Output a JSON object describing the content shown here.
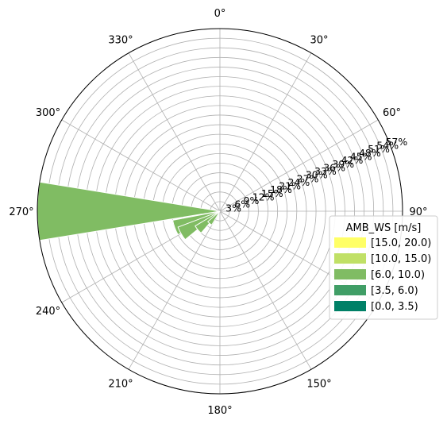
{
  "chart_data": {
    "type": "polar-bar",
    "title": "",
    "theta_direction": "clockwise",
    "theta_zero": "N",
    "theta_ticks": [
      "0°",
      "30°",
      "60°",
      "90°",
      "150°",
      "180°",
      "210°",
      "240°",
      "270°",
      "300°",
      "330°"
    ],
    "r_ticks": [
      "3%",
      "6%",
      "9%",
      "12%",
      "15%",
      "18%",
      "21%",
      "24%",
      "27%",
      "30%",
      "33%",
      "36%",
      "39%",
      "42%",
      "45%",
      "48%",
      "51%",
      "54%",
      "57%"
    ],
    "r_max": 57,
    "grid": true,
    "legend": {
      "title": "AMB_WS [m/s]",
      "position": "right",
      "entries": [
        {
          "label": "[15.0, 20.0)",
          "color": "#ffff66"
        },
        {
          "label": "[10.0, 15.0)",
          "color": "#c0e066"
        },
        {
          "label": "[6.0, 10.0)",
          "color": "#80bc63"
        },
        {
          "label": "[3.5, 6.0)",
          "color": "#409e66"
        },
        {
          "label": "[0.0, 3.5)",
          "color": "#008066"
        }
      ]
    },
    "bars": [
      {
        "direction_deg": 270,
        "value": 57,
        "color": "#80bc63"
      },
      {
        "direction_deg": 250,
        "value": 15,
        "color": "#80bc63"
      },
      {
        "direction_deg": 240,
        "value": 14,
        "color": "#80bc63"
      },
      {
        "direction_deg": 230,
        "value": 9,
        "color": "#80bc63"
      },
      {
        "direction_deg": 220,
        "value": 5,
        "color": "#80bc63"
      }
    ]
  }
}
